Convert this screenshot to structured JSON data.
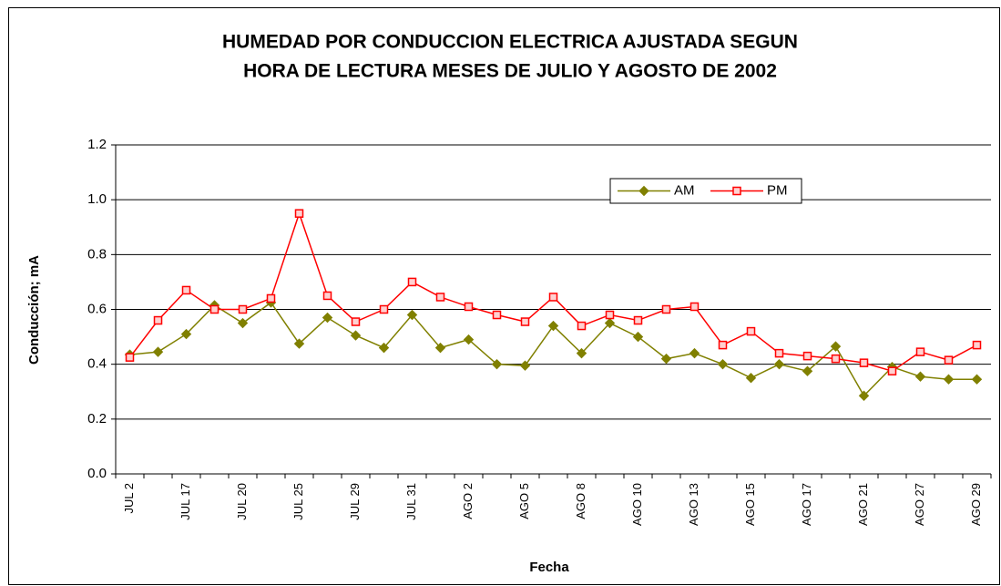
{
  "chart_data": {
    "type": "line",
    "title": [
      "HUMEDAD POR CONDUCCION ELECTRICA AJUSTADA SEGUN",
      "HORA DE LECTURA MESES DE JULIO Y AGOSTO DE 2002"
    ],
    "x_label": "Fecha",
    "y_label": "Conducción; mA",
    "categories": [
      "JUL 2",
      null,
      "JUL 17",
      null,
      "JUL 20",
      null,
      "JUL 25",
      null,
      "JUL 29",
      null,
      "JUL 31",
      null,
      "AGO 2",
      null,
      "AGO 5",
      null,
      "AGO 8",
      null,
      "AGO 10",
      null,
      "AGO 13",
      null,
      "AGO 15",
      null,
      "AGO 17",
      null,
      "AGO 21",
      null,
      "AGO 27",
      null,
      "AGO 29"
    ],
    "series": [
      {
        "name": "AM",
        "color": "#808000",
        "marker": "diamond",
        "values": [
          0.435,
          0.445,
          0.51,
          0.615,
          0.55,
          0.625,
          0.475,
          0.57,
          0.505,
          0.46,
          0.58,
          0.46,
          0.49,
          0.4,
          0.395,
          0.54,
          0.44,
          0.55,
          0.5,
          0.42,
          0.44,
          0.4,
          0.35,
          0.4,
          0.375,
          0.465,
          0.285,
          0.39,
          0.355,
          0.345,
          0.345
        ]
      },
      {
        "name": "PM",
        "color": "#ff0000",
        "marker": "square",
        "values": [
          0.425,
          0.56,
          0.67,
          0.6,
          0.6,
          0.64,
          0.95,
          0.65,
          0.555,
          0.6,
          0.7,
          0.645,
          0.61,
          0.58,
          0.555,
          0.645,
          0.54,
          0.58,
          0.56,
          0.6,
          0.61,
          0.47,
          0.52,
          0.44,
          0.43,
          0.42,
          0.405,
          0.375,
          0.445,
          0.415,
          0.47
        ]
      }
    ],
    "ylim": [
      0,
      1.2
    ],
    "yticks": [
      {
        "value": 0,
        "label": "0.0"
      },
      0.2,
      0.4,
      0.6,
      0.8,
      {
        "value": 1,
        "label": "1.0"
      },
      1.2
    ],
    "grid": true,
    "legend": "upper right"
  }
}
